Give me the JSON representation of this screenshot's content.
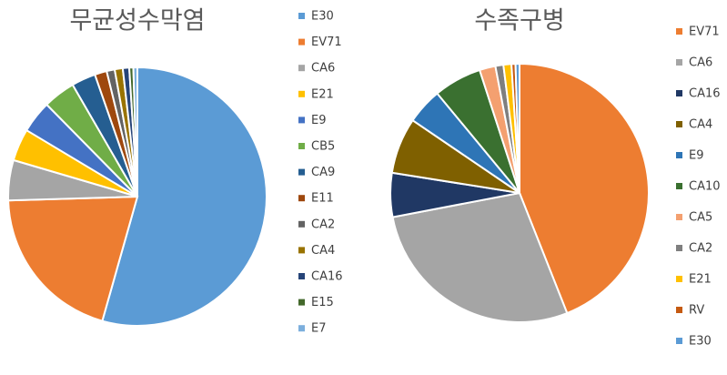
{
  "chart_data": [
    {
      "type": "pie",
      "title": "무균성수막염",
      "categories": [
        "E30",
        "EV71",
        "CA6",
        "E21",
        "E9",
        "CB5",
        "CA9",
        "E11",
        "CA2",
        "CA4",
        "CA16",
        "E15",
        "E7"
      ],
      "values": [
        54,
        20,
        5,
        4,
        4,
        4,
        3,
        1.5,
        1,
        1,
        0.8,
        0.5,
        0.5
      ],
      "colors": [
        "#5b9bd5",
        "#ed7d31",
        "#a5a5a5",
        "#ffc000",
        "#4472c4",
        "#70ad47",
        "#255e91",
        "#9e480e",
        "#636363",
        "#997300",
        "#264478",
        "#43682b",
        "#7cafdd"
      ]
    },
    {
      "type": "pie",
      "title": "수족구병",
      "categories": [
        "EV71",
        "CA6",
        "CA16",
        "CA4",
        "E9",
        "CA10",
        "CA5",
        "CA2",
        "E21",
        "RV",
        "E30"
      ],
      "values": [
        44,
        28,
        5.5,
        7,
        4.5,
        6,
        2,
        1,
        1,
        0.5,
        0.5
      ],
      "colors": [
        "#ed7d31",
        "#a5a5a5",
        "#203864",
        "#7f6000",
        "#2e75b6",
        "#3a7030",
        "#f4a070",
        "#7f7f7f",
        "#ffc000",
        "#c55a11",
        "#5b9bd5"
      ]
    }
  ]
}
